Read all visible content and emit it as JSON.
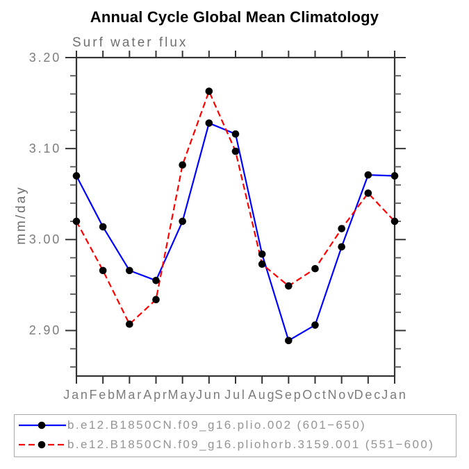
{
  "chart_data": {
    "type": "line",
    "title": "Annual Cycle Global Mean Climatology",
    "subtitle": "Surf water flux",
    "ylabel": "mm/day",
    "xlabel": "",
    "categories": [
      "Jan",
      "Feb",
      "Mar",
      "Apr",
      "May",
      "Jun",
      "Jul",
      "Aug",
      "Sep",
      "Oct",
      "Nov",
      "Dec",
      "Jan"
    ],
    "ylim": [
      2.85,
      3.2
    ],
    "yticks_major": [
      2.9,
      3.0,
      3.1,
      3.2
    ],
    "ytick_labels": [
      "2.90",
      "3.00",
      "3.10",
      "3.20"
    ],
    "ytick_minor_step": 0.02,
    "grid": false,
    "legend_position": "bottom",
    "marker": {
      "shape": "circle",
      "color": "#000000"
    },
    "axis_color": "#333333",
    "tick_label_color": "#7c7c7c",
    "series": [
      {
        "name": "b.e12.B1850CN.f09_g16.plio.002 (601−650)",
        "color": "#0000ff",
        "line_style": "solid",
        "values": [
          3.07,
          3.014,
          2.966,
          2.955,
          3.02,
          3.128,
          3.116,
          2.984,
          2.889,
          2.906,
          2.992,
          3.071,
          3.07
        ]
      },
      {
        "name": "b.e12.B1850CN.f09_g16.pliohorb.3159.001 (551−600)",
        "color": "#ff0000",
        "line_style": "dashed",
        "values": [
          3.02,
          2.966,
          2.907,
          2.934,
          3.082,
          3.163,
          3.097,
          2.973,
          2.949,
          2.968,
          3.012,
          3.051,
          3.02
        ]
      }
    ]
  }
}
